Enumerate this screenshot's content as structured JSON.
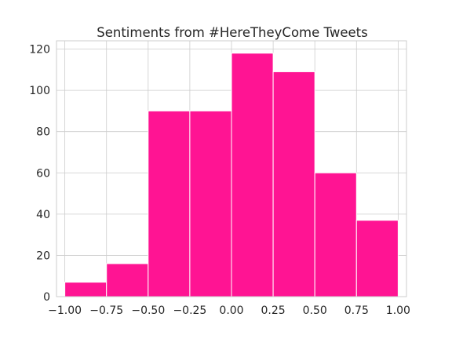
{
  "chart_data": {
    "type": "bar",
    "title": "Sentiments from #HereTheyCome Tweets",
    "xlabel": "",
    "ylabel": "",
    "bin_edges": [
      -1.0,
      -0.75,
      -0.5,
      -0.25,
      0.0,
      0.25,
      0.5,
      0.75,
      1.0
    ],
    "values": [
      7,
      16,
      90,
      90,
      118,
      109,
      60,
      37
    ],
    "xlim": [
      -1.05,
      1.05
    ],
    "ylim": [
      0,
      124
    ],
    "xticks": [
      -1.0,
      -0.75,
      -0.5,
      -0.25,
      0.0,
      0.25,
      0.5,
      0.75,
      1.0
    ],
    "xtick_labels": [
      "−1.00",
      "−0.75",
      "−0.50",
      "−0.25",
      "0.00",
      "0.25",
      "0.50",
      "0.75",
      "1.00"
    ],
    "yticks": [
      0,
      20,
      40,
      60,
      80,
      100,
      120
    ],
    "ytick_labels": [
      "0",
      "20",
      "40",
      "60",
      "80",
      "100",
      "120"
    ],
    "grid": true,
    "bar_color": "#ff1493",
    "edge_color": "#ffffff"
  }
}
